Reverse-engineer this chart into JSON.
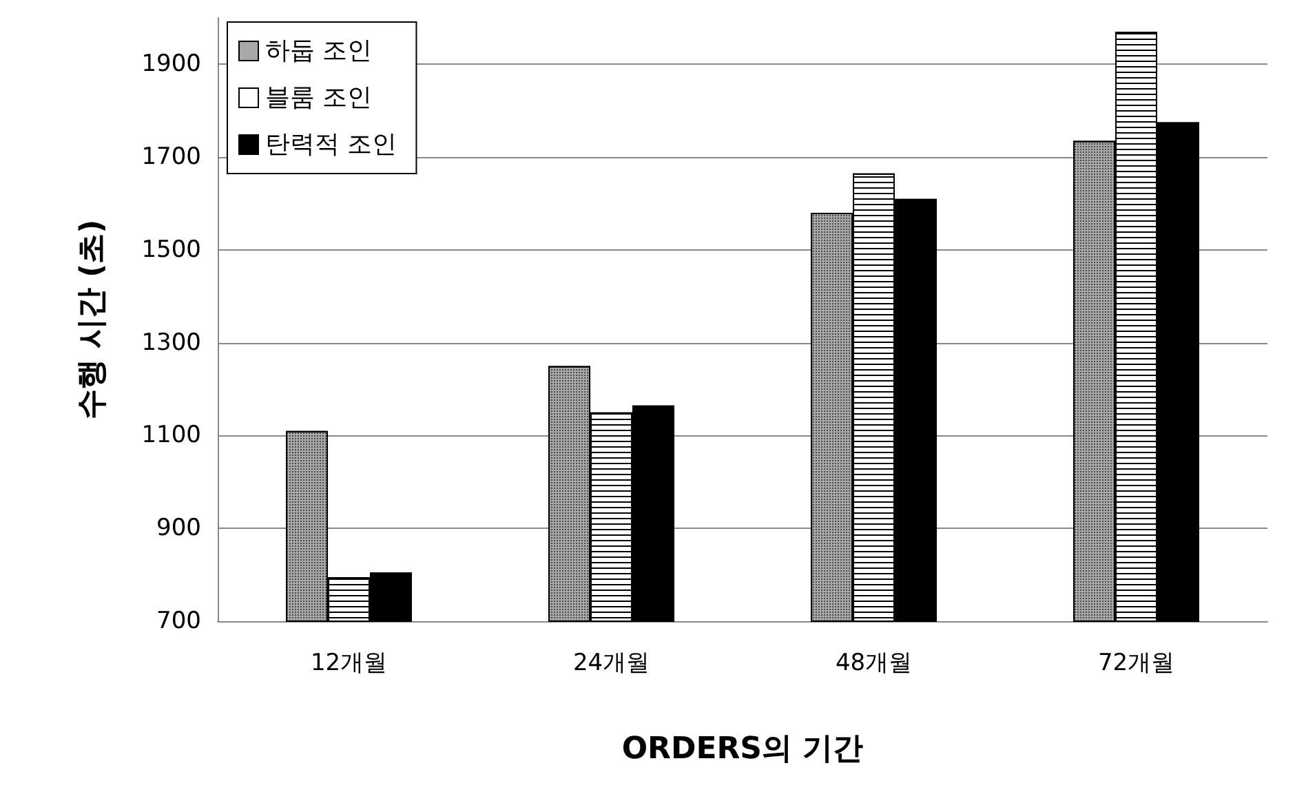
{
  "chart_data": {
    "type": "bar",
    "xlabel": "ORDERS의 기간",
    "ylabel": "수행 시간 (초)",
    "categories": [
      "12개월",
      "24개월",
      "48개월",
      "72개월"
    ],
    "series": [
      {
        "name": "하둡 조인",
        "color": "#a8a8a8",
        "values": [
          1110,
          1250,
          1580,
          1735
        ]
      },
      {
        "name": "블룸 조인",
        "color": "#ffffff",
        "values": [
          795,
          1150,
          1665,
          1970
        ]
      },
      {
        "name": "탄력적 조인",
        "color": "#000000",
        "values": [
          805,
          1165,
          1610,
          1775
        ]
      }
    ],
    "ylim": [
      700,
      2000
    ],
    "yticks": [
      700,
      900,
      1100,
      1300,
      1500,
      1700,
      1900
    ],
    "grid": "y",
    "legend": "top left"
  }
}
